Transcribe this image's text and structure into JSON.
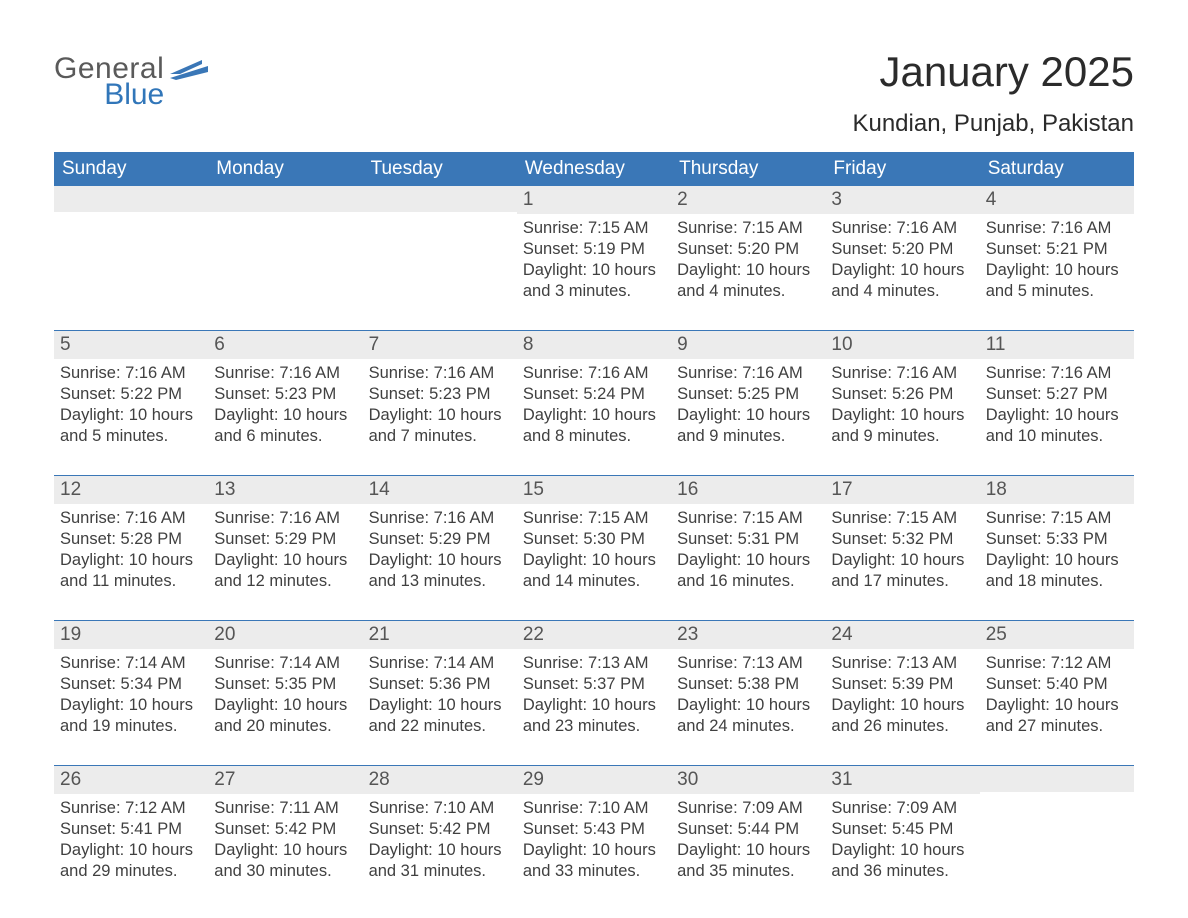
{
  "logo": {
    "general": "General",
    "blue": "Blue",
    "flag_color": "#3a77b7"
  },
  "title": "January 2025",
  "location": "Kundian, Punjab, Pakistan",
  "colors": {
    "header_bg": "#3a77b7",
    "header_text": "#ffffff",
    "daynum_bg": "#ececec",
    "daynum_text": "#555555",
    "body_text": "#404040",
    "week_border": "#3a77b7",
    "page_bg": "#ffffff"
  },
  "weekdays": [
    "Sunday",
    "Monday",
    "Tuesday",
    "Wednesday",
    "Thursday",
    "Friday",
    "Saturday"
  ],
  "weeks": [
    [
      null,
      null,
      null,
      {
        "n": "1",
        "sr": "7:15 AM",
        "ss": "5:19 PM",
        "dl": "10 hours and 3 minutes."
      },
      {
        "n": "2",
        "sr": "7:15 AM",
        "ss": "5:20 PM",
        "dl": "10 hours and 4 minutes."
      },
      {
        "n": "3",
        "sr": "7:16 AM",
        "ss": "5:20 PM",
        "dl": "10 hours and 4 minutes."
      },
      {
        "n": "4",
        "sr": "7:16 AM",
        "ss": "5:21 PM",
        "dl": "10 hours and 5 minutes."
      }
    ],
    [
      {
        "n": "5",
        "sr": "7:16 AM",
        "ss": "5:22 PM",
        "dl": "10 hours and 5 minutes."
      },
      {
        "n": "6",
        "sr": "7:16 AM",
        "ss": "5:23 PM",
        "dl": "10 hours and 6 minutes."
      },
      {
        "n": "7",
        "sr": "7:16 AM",
        "ss": "5:23 PM",
        "dl": "10 hours and 7 minutes."
      },
      {
        "n": "8",
        "sr": "7:16 AM",
        "ss": "5:24 PM",
        "dl": "10 hours and 8 minutes."
      },
      {
        "n": "9",
        "sr": "7:16 AM",
        "ss": "5:25 PM",
        "dl": "10 hours and 9 minutes."
      },
      {
        "n": "10",
        "sr": "7:16 AM",
        "ss": "5:26 PM",
        "dl": "10 hours and 9 minutes."
      },
      {
        "n": "11",
        "sr": "7:16 AM",
        "ss": "5:27 PM",
        "dl": "10 hours and 10 minutes."
      }
    ],
    [
      {
        "n": "12",
        "sr": "7:16 AM",
        "ss": "5:28 PM",
        "dl": "10 hours and 11 minutes."
      },
      {
        "n": "13",
        "sr": "7:16 AM",
        "ss": "5:29 PM",
        "dl": "10 hours and 12 minutes."
      },
      {
        "n": "14",
        "sr": "7:16 AM",
        "ss": "5:29 PM",
        "dl": "10 hours and 13 minutes."
      },
      {
        "n": "15",
        "sr": "7:15 AM",
        "ss": "5:30 PM",
        "dl": "10 hours and 14 minutes."
      },
      {
        "n": "16",
        "sr": "7:15 AM",
        "ss": "5:31 PM",
        "dl": "10 hours and 16 minutes."
      },
      {
        "n": "17",
        "sr": "7:15 AM",
        "ss": "5:32 PM",
        "dl": "10 hours and 17 minutes."
      },
      {
        "n": "18",
        "sr": "7:15 AM",
        "ss": "5:33 PM",
        "dl": "10 hours and 18 minutes."
      }
    ],
    [
      {
        "n": "19",
        "sr": "7:14 AM",
        "ss": "5:34 PM",
        "dl": "10 hours and 19 minutes."
      },
      {
        "n": "20",
        "sr": "7:14 AM",
        "ss": "5:35 PM",
        "dl": "10 hours and 20 minutes."
      },
      {
        "n": "21",
        "sr": "7:14 AM",
        "ss": "5:36 PM",
        "dl": "10 hours and 22 minutes."
      },
      {
        "n": "22",
        "sr": "7:13 AM",
        "ss": "5:37 PM",
        "dl": "10 hours and 23 minutes."
      },
      {
        "n": "23",
        "sr": "7:13 AM",
        "ss": "5:38 PM",
        "dl": "10 hours and 24 minutes."
      },
      {
        "n": "24",
        "sr": "7:13 AM",
        "ss": "5:39 PM",
        "dl": "10 hours and 26 minutes."
      },
      {
        "n": "25",
        "sr": "7:12 AM",
        "ss": "5:40 PM",
        "dl": "10 hours and 27 minutes."
      }
    ],
    [
      {
        "n": "26",
        "sr": "7:12 AM",
        "ss": "5:41 PM",
        "dl": "10 hours and 29 minutes."
      },
      {
        "n": "27",
        "sr": "7:11 AM",
        "ss": "5:42 PM",
        "dl": "10 hours and 30 minutes."
      },
      {
        "n": "28",
        "sr": "7:10 AM",
        "ss": "5:42 PM",
        "dl": "10 hours and 31 minutes."
      },
      {
        "n": "29",
        "sr": "7:10 AM",
        "ss": "5:43 PM",
        "dl": "10 hours and 33 minutes."
      },
      {
        "n": "30",
        "sr": "7:09 AM",
        "ss": "5:44 PM",
        "dl": "10 hours and 35 minutes."
      },
      {
        "n": "31",
        "sr": "7:09 AM",
        "ss": "5:45 PM",
        "dl": "10 hours and 36 minutes."
      },
      null
    ]
  ],
  "labels": {
    "sunrise": "Sunrise: ",
    "sunset": "Sunset: ",
    "daylight": "Daylight: "
  }
}
